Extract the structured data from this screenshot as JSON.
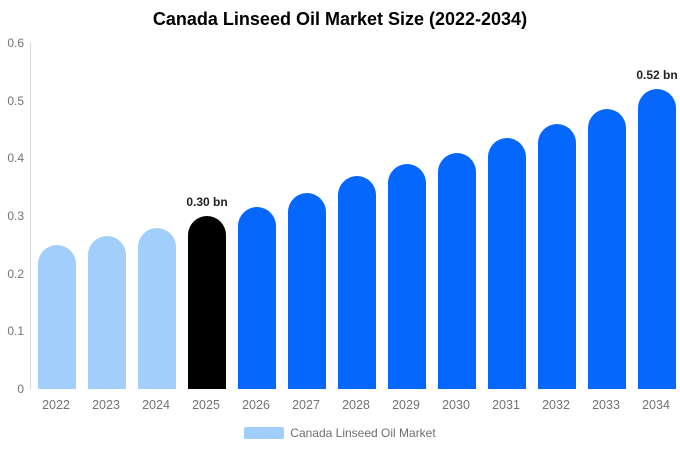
{
  "chart_data": {
    "type": "bar",
    "title": "Canada Linseed Oil Market Size (2022-2034)",
    "unit": "bn",
    "categories": [
      "2022",
      "2023",
      "2024",
      "2025",
      "2026",
      "2027",
      "2028",
      "2029",
      "2030",
      "2031",
      "2032",
      "2033",
      "2034"
    ],
    "series": [
      {
        "year": "2022",
        "value": 0.25,
        "style": "historical"
      },
      {
        "year": "2023",
        "value": 0.265,
        "style": "historical"
      },
      {
        "year": "2024",
        "value": 0.28,
        "style": "historical"
      },
      {
        "year": "2025",
        "value": 0.3,
        "style": "highlight",
        "label": "0.30 bn"
      },
      {
        "year": "2026",
        "value": 0.315,
        "style": "forecast"
      },
      {
        "year": "2027",
        "value": 0.34,
        "style": "forecast"
      },
      {
        "year": "2028",
        "value": 0.37,
        "style": "forecast"
      },
      {
        "year": "2029",
        "value": 0.39,
        "style": "forecast"
      },
      {
        "year": "2030",
        "value": 0.41,
        "style": "forecast"
      },
      {
        "year": "2031",
        "value": 0.435,
        "style": "forecast"
      },
      {
        "year": "2032",
        "value": 0.46,
        "style": "forecast"
      },
      {
        "year": "2033",
        "value": 0.485,
        "style": "forecast"
      },
      {
        "year": "2034",
        "value": 0.52,
        "style": "forecast",
        "label": "0.52 bn"
      }
    ],
    "y_ticks": [
      "0",
      "0.1",
      "0.2",
      "0.3",
      "0.4",
      "0.5",
      "0.6"
    ],
    "ylim": [
      0,
      0.6
    ],
    "grid": "off",
    "legend_position": "bottom",
    "legend": [
      {
        "label": "Canada Linseed Oil Market",
        "color": "#a1cefb"
      }
    ],
    "colors": {
      "historical": "#a1cefb",
      "highlight": "#000000",
      "forecast": "#0667fd",
      "axis_line": "#d9d9d9",
      "tick_text": "#737373",
      "value_label_text": "#222222"
    }
  }
}
